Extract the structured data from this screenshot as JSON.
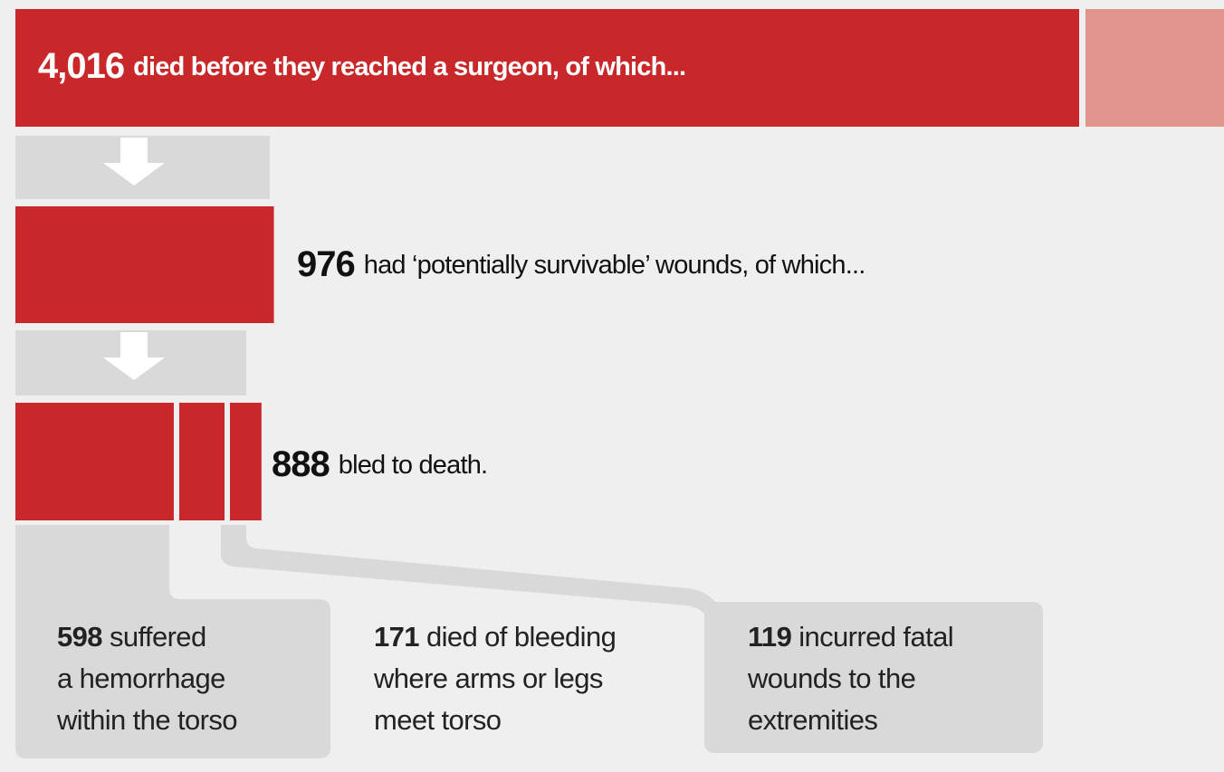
{
  "steps": [
    {
      "count": {
        "value": 4016,
        "label": "4,016"
      },
      "text": "died before they reached a surgeon, of which..."
    },
    {
      "count": 976,
      "text": "had ‘potentially survivable’ wounds, of which..."
    },
    {
      "count": 888,
      "text": "bled to death."
    }
  ],
  "breakdown": [
    {
      "count": 598,
      "lines": [
        "suffered",
        "a hemorrhage",
        "within the torso"
      ]
    },
    {
      "count": 171,
      "lines": [
        "died of bleeding",
        "where arms or legs",
        "meet torso"
      ]
    },
    {
      "count": 119,
      "lines": [
        "incurred fatal",
        "wounds to the",
        "extremities"
      ]
    }
  ]
}
